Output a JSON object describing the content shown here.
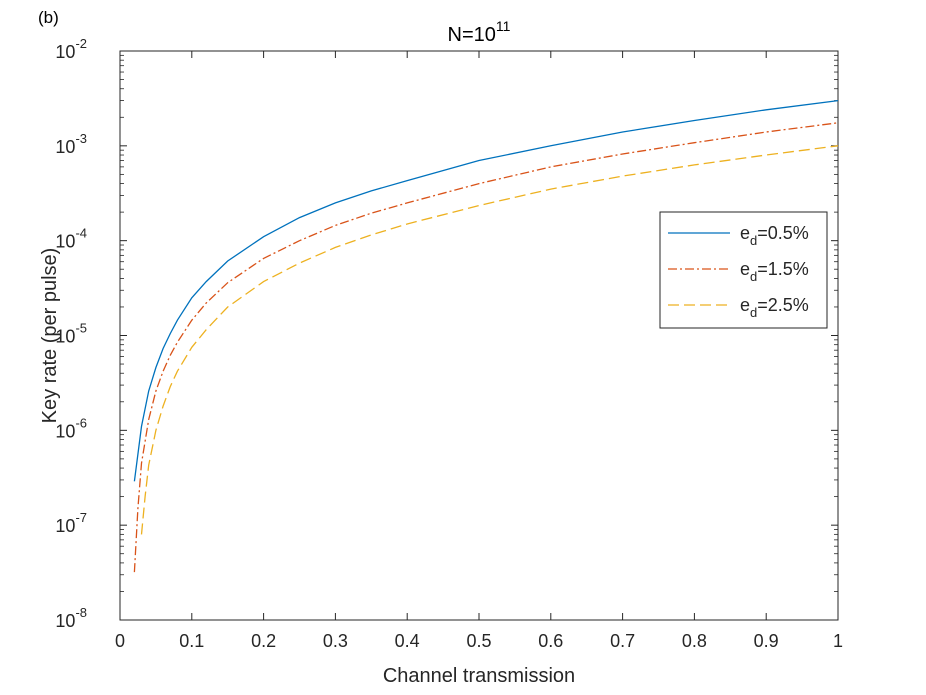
{
  "panel_label": "(b)",
  "chart_data": {
    "type": "line",
    "title": {
      "base": "N=10",
      "exp": "11"
    },
    "xlabel": "Channel transmission",
    "ylabel": "Key rate (per pulse)",
    "xlim": [
      0,
      1
    ],
    "ylim": [
      1e-08,
      0.01
    ],
    "yscale": "log",
    "grid": false,
    "legend_position": "right",
    "x_ticks": [
      "0",
      "0.1",
      "0.2",
      "0.3",
      "0.4",
      "0.5",
      "0.6",
      "0.7",
      "0.8",
      "0.9",
      "1"
    ],
    "y_ticks": [
      {
        "base": "10",
        "exp": "-8"
      },
      {
        "base": "10",
        "exp": "-7"
      },
      {
        "base": "10",
        "exp": "-6"
      },
      {
        "base": "10",
        "exp": "-5"
      },
      {
        "base": "10",
        "exp": "-4"
      },
      {
        "base": "10",
        "exp": "-3"
      },
      {
        "base": "10",
        "exp": "-2"
      }
    ],
    "series": [
      {
        "name": {
          "base": "e",
          "sub": "d",
          "rest": "=0.5%"
        },
        "color": "#0072BD",
        "dash": "solid",
        "points": [
          [
            0.02,
            2.9e-07
          ],
          [
            0.03,
            1.1e-06
          ],
          [
            0.04,
            2.6e-06
          ],
          [
            0.05,
            4.6e-06
          ],
          [
            0.06,
            7.3e-06
          ],
          [
            0.07,
            1.05e-05
          ],
          [
            0.08,
            1.45e-05
          ],
          [
            0.1,
            2.5e-05
          ],
          [
            0.12,
            3.7e-05
          ],
          [
            0.15,
            6.1e-05
          ],
          [
            0.2,
            0.00011
          ],
          [
            0.25,
            0.000175
          ],
          [
            0.3,
            0.00025
          ],
          [
            0.35,
            0.000335
          ],
          [
            0.4,
            0.00043
          ],
          [
            0.5,
            0.0007
          ],
          [
            0.6,
            0.001
          ],
          [
            0.7,
            0.0014
          ],
          [
            0.8,
            0.00185
          ],
          [
            0.9,
            0.0024
          ],
          [
            1.0,
            0.003
          ]
        ]
      },
      {
        "name": {
          "base": "e",
          "sub": "d",
          "rest": "=1.5%"
        },
        "color": "#D95319",
        "dash": "dashdot",
        "points": [
          [
            0.02,
            3.2e-08
          ],
          [
            0.025,
            1.5e-07
          ],
          [
            0.03,
            4.5e-07
          ],
          [
            0.04,
            1.3e-06
          ],
          [
            0.05,
            2.6e-06
          ],
          [
            0.06,
            4.2e-06
          ],
          [
            0.07,
            6.2e-06
          ],
          [
            0.08,
            8.5e-06
          ],
          [
            0.1,
            1.45e-05
          ],
          [
            0.12,
            2.2e-05
          ],
          [
            0.15,
            3.6e-05
          ],
          [
            0.2,
            6.5e-05
          ],
          [
            0.25,
            0.0001
          ],
          [
            0.3,
            0.000145
          ],
          [
            0.35,
            0.000195
          ],
          [
            0.4,
            0.00025
          ],
          [
            0.5,
            0.0004
          ],
          [
            0.6,
            0.0006
          ],
          [
            0.7,
            0.00082
          ],
          [
            0.8,
            0.00108
          ],
          [
            0.9,
            0.0014
          ],
          [
            1.0,
            0.00175
          ]
        ]
      },
      {
        "name": {
          "base": "e",
          "sub": "d",
          "rest": "=2.5%"
        },
        "color": "#EDB120",
        "dash": "dashed",
        "points": [
          [
            0.03,
            8e-08
          ],
          [
            0.035,
            2e-07
          ],
          [
            0.04,
            4.3e-07
          ],
          [
            0.05,
            1e-06
          ],
          [
            0.06,
            1.8e-06
          ],
          [
            0.07,
            2.9e-06
          ],
          [
            0.08,
            4.2e-06
          ],
          [
            0.1,
            7.5e-06
          ],
          [
            0.12,
            1.15e-05
          ],
          [
            0.15,
            2e-05
          ],
          [
            0.2,
            3.7e-05
          ],
          [
            0.25,
            5.8e-05
          ],
          [
            0.3,
            8.5e-05
          ],
          [
            0.35,
            0.000115
          ],
          [
            0.4,
            0.00015
          ],
          [
            0.5,
            0.000235
          ],
          [
            0.6,
            0.00035
          ],
          [
            0.7,
            0.00048
          ],
          [
            0.8,
            0.00063
          ],
          [
            0.9,
            0.0008
          ],
          [
            1.0,
            0.001
          ]
        ]
      }
    ]
  }
}
